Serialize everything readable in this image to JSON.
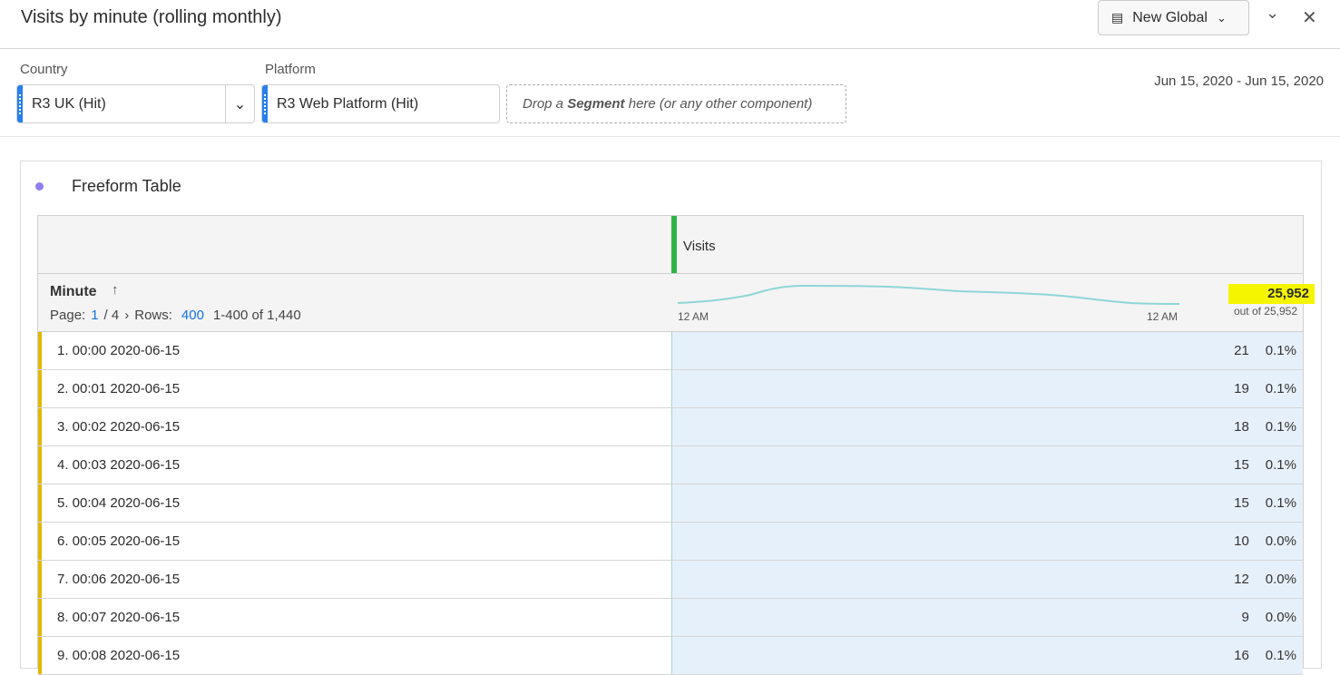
{
  "header": {
    "title": "Visits by minute (rolling monthly)",
    "global_label": "New Global"
  },
  "filters": [
    {
      "label": "Country",
      "value": "R3 UK (Hit)"
    },
    {
      "label": "Platform",
      "value": "R3 Web Platform (Hit)"
    }
  ],
  "drop_zone": {
    "pre": "Drop a ",
    "bold": "Segment",
    "post": " here (or any other component)"
  },
  "date_range": "Jun 15, 2020 - Jun 15, 2020",
  "panel": {
    "title": "Freeform Table",
    "accent": "#8f7ff0"
  },
  "table": {
    "metric": "Visits",
    "dimension": "Minute",
    "page_label": "Page:",
    "page": "1",
    "page_total": "/ 4",
    "rows_label": "Rows:",
    "rows": "400",
    "range": "1-400 of 1,440",
    "spark_start": "12 AM",
    "spark_end": "12 AM",
    "total": "25,952",
    "total_sub": "out of 25,952",
    "rows_data": [
      {
        "label": "1. 00:00 2020-06-15",
        "value": "21",
        "pct": "0.1%"
      },
      {
        "label": "2. 00:01 2020-06-15",
        "value": "19",
        "pct": "0.1%"
      },
      {
        "label": "3. 00:02 2020-06-15",
        "value": "18",
        "pct": "0.1%"
      },
      {
        "label": "4. 00:03 2020-06-15",
        "value": "15",
        "pct": "0.1%"
      },
      {
        "label": "5. 00:04 2020-06-15",
        "value": "15",
        "pct": "0.1%"
      },
      {
        "label": "6. 00:05 2020-06-15",
        "value": "10",
        "pct": "0.0%"
      },
      {
        "label": "7. 00:06 2020-06-15",
        "value": "12",
        "pct": "0.0%"
      },
      {
        "label": "8. 00:07 2020-06-15",
        "value": "9",
        "pct": "0.0%"
      },
      {
        "label": "9. 00:08 2020-06-15",
        "value": "16",
        "pct": "0.1%"
      }
    ]
  }
}
